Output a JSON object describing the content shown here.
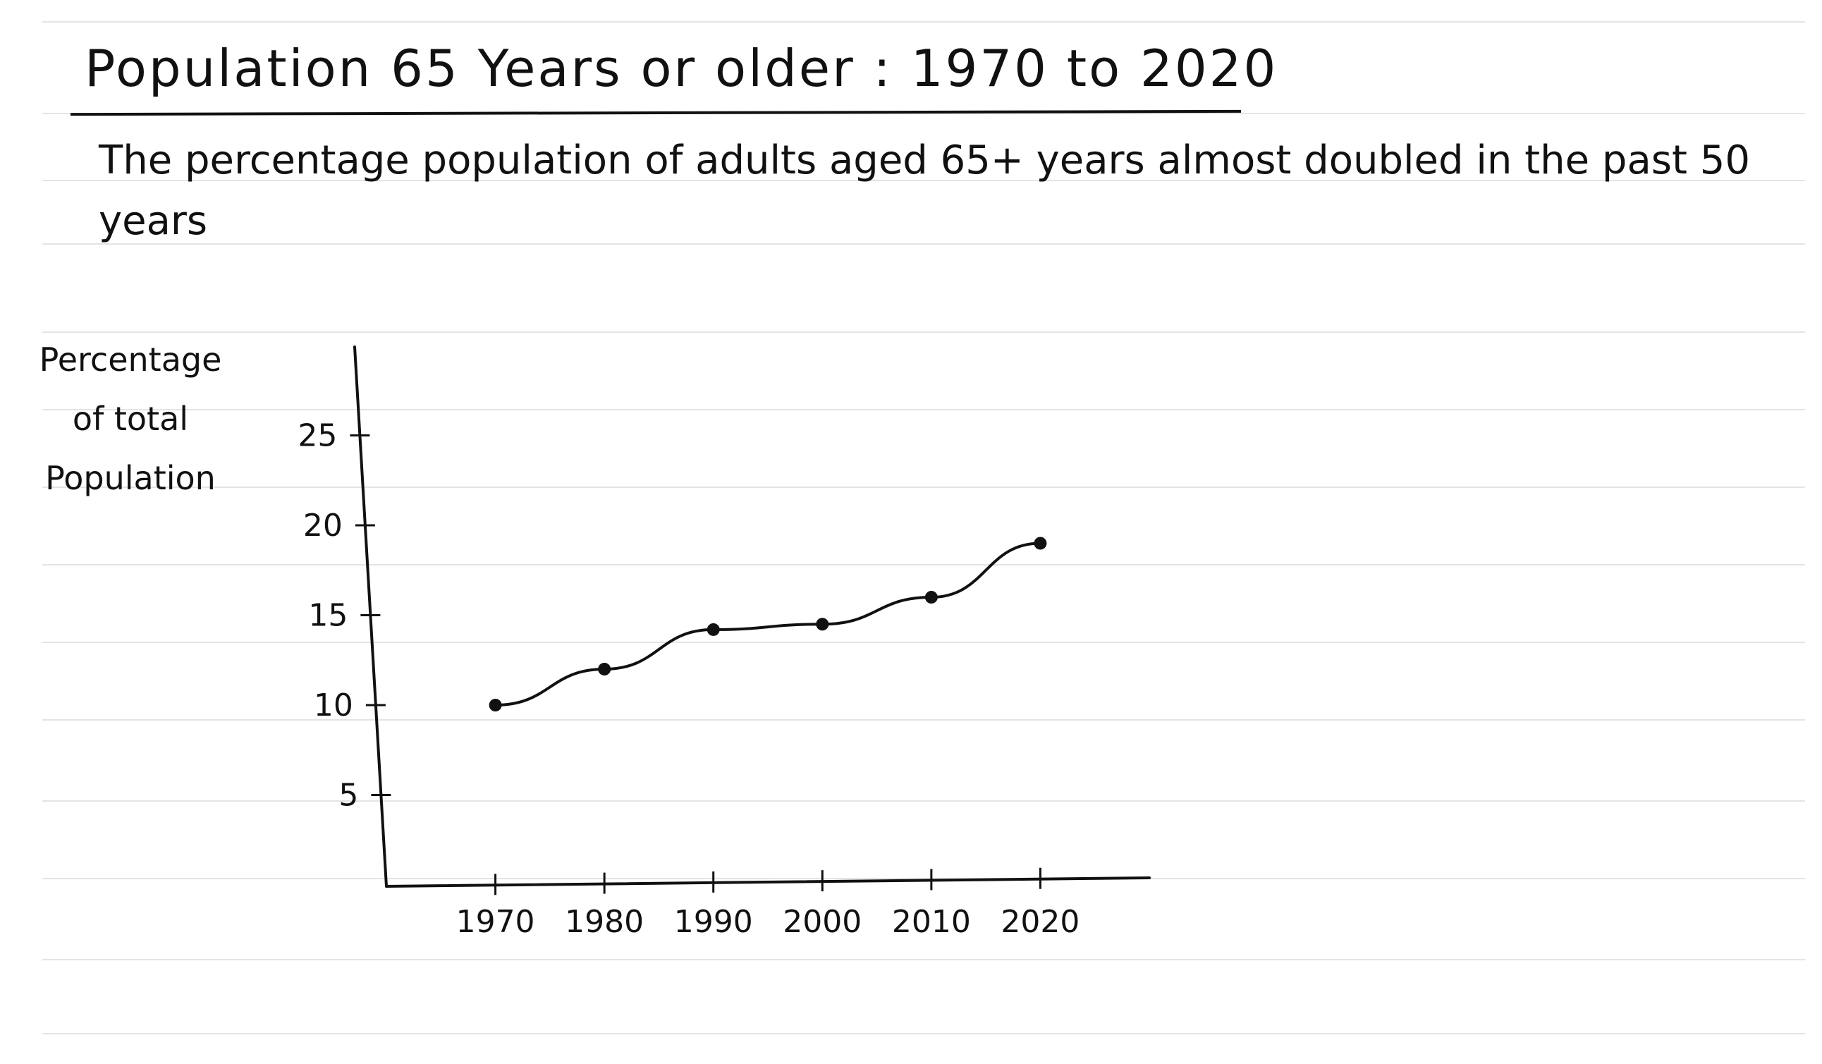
{
  "title": "Population 65 Years or older : 1970 to 2020",
  "subtitle": "The percentage population of adults aged 65+ years almost doubled in the past 50 years",
  "ylabel": "Percentage of total Population",
  "chart_data": {
    "type": "line",
    "title": "Population 65 Years or older : 1970 to 2020",
    "subtitle": "The percentage population of adults aged 65+ years almost doubled in the past 50 years",
    "xlabel": "",
    "ylabel": "Percentage of total Population",
    "x_ticks": [
      "1970",
      "1980",
      "1990",
      "2000",
      "2010",
      "2020"
    ],
    "y_ticks": [
      "5",
      "10",
      "15",
      "20",
      "25"
    ],
    "xlim": [
      1960,
      2030
    ],
    "ylim": [
      0,
      30
    ],
    "grid": false,
    "line_color": "#111111",
    "series": [
      {
        "x": [
          1970,
          1980,
          1990,
          2000,
          2010,
          2020
        ],
        "y": [
          10,
          12,
          14.2,
          14.5,
          16,
          19
        ]
      }
    ]
  }
}
